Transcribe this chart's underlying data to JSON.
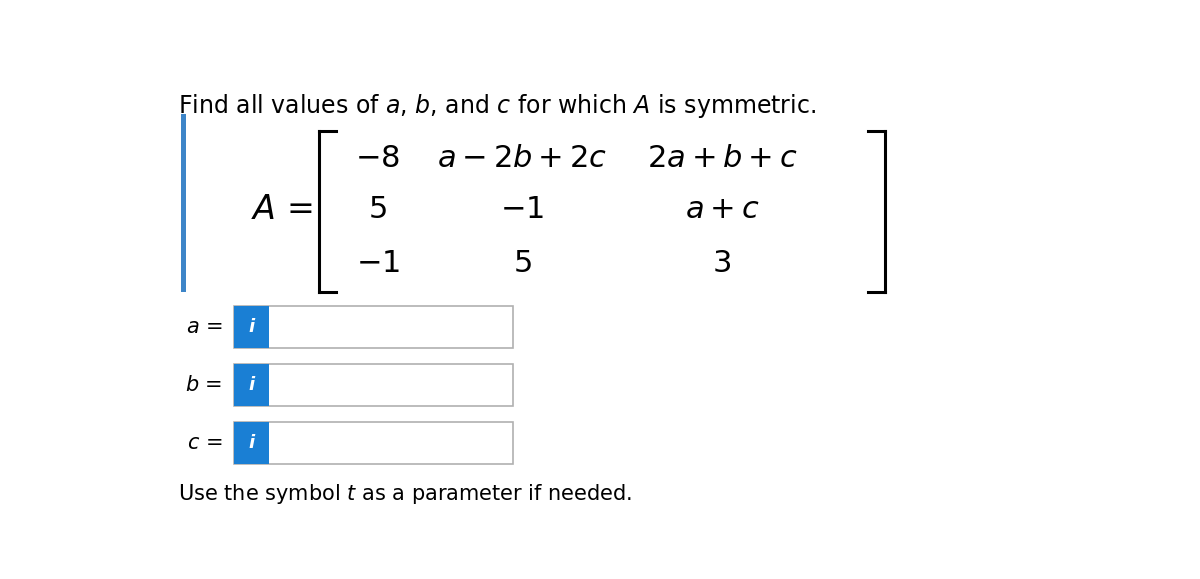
{
  "title": "Find all values of $a$, $b$, and $c$ for which $A$ is symmetric.",
  "title_fontsize": 17,
  "background_color": "#ffffff",
  "matrix_label": "$A$ =",
  "matrix_fontsize": 22,
  "row1": [
    "$-8$",
    "$a - 2b + 2c$",
    "$2a + b + c$"
  ],
  "row2": [
    "$5$",
    "$-1$",
    "$a + c$"
  ],
  "row3": [
    "$-1$",
    "$5$",
    "$3$"
  ],
  "input_labels": [
    "$a$ =",
    "$b$ =",
    "$c$ ="
  ],
  "input_label_fontsize": 15,
  "blue_color": "#1a7fd4",
  "gray_border": "#b0b0b0",
  "footer_text": "Use the symbol $t$ as a parameter if needed.",
  "footer_fontsize": 15,
  "left_bar_color": "#3d85c8"
}
